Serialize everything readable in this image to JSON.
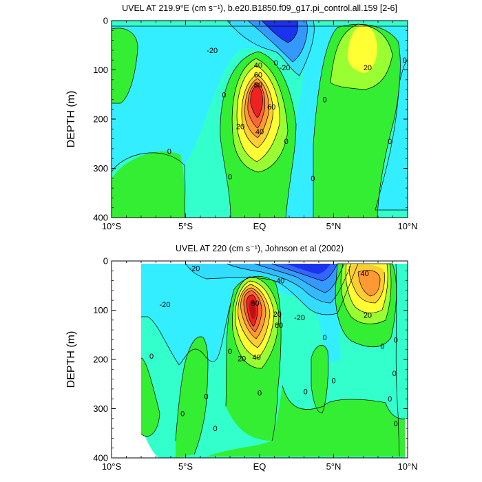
{
  "chart_data": [
    {
      "type": "heatmap",
      "title": "UVEL AT 219.9°E (cm s⁻¹), b.e20.B1850.f09_g17.pi_control.all.159 [2-6]",
      "ylabel": "DEPTH (m)",
      "xlabel": "",
      "xlim": [
        -10,
        10
      ],
      "ylim": [
        400,
        0
      ],
      "x_ticks": [
        {
          "value": -10,
          "label": "10°S"
        },
        {
          "value": -5,
          "label": "5°S"
        },
        {
          "value": 0,
          "label": "EQ"
        },
        {
          "value": 5,
          "label": "5°N"
        },
        {
          "value": 10,
          "label": "10°N"
        }
      ],
      "y_ticks": [
        {
          "value": 0,
          "label": "0"
        },
        {
          "value": 100,
          "label": "100"
        },
        {
          "value": 200,
          "label": "200"
        },
        {
          "value": 300,
          "label": "300"
        },
        {
          "value": 400,
          "label": "400"
        }
      ],
      "contour_interval": 10,
      "features": [
        {
          "name": "eastward undercurrent",
          "lat": 0,
          "depth": 140,
          "value": 90,
          "lat_halfwidth": 1.5,
          "depth_halfwidth": 75
        },
        {
          "name": "westward surface current",
          "lat": 1.8,
          "depth": 15,
          "value": -45,
          "lat_halfwidth": 1.3,
          "depth_halfwidth": 40
        },
        {
          "name": "north eastward countercurrent",
          "lat": 6.8,
          "depth": 40,
          "value": 40,
          "lat_halfwidth": 1.6,
          "depth_halfwidth": 70
        }
      ],
      "contour_labels": [
        {
          "text": "-20",
          "lat": -3.2,
          "depth": 60
        },
        {
          "text": "-20",
          "lat": 1.7,
          "depth": 95
        },
        {
          "text": "0",
          "lat": 1.1,
          "depth": 85
        },
        {
          "text": "40",
          "lat": -0.1,
          "depth": 90
        },
        {
          "text": "60",
          "lat": -0.1,
          "depth": 110
        },
        {
          "text": "80",
          "lat": -0.1,
          "depth": 130
        },
        {
          "text": "60",
          "lat": 0.8,
          "depth": 175
        },
        {
          "text": "40",
          "lat": 0,
          "depth": 225
        },
        {
          "text": "20",
          "lat": -1.3,
          "depth": 215
        },
        {
          "text": "0",
          "lat": -2.4,
          "depth": 150
        },
        {
          "text": "0",
          "lat": -6.1,
          "depth": 265
        },
        {
          "text": "0",
          "lat": 1.8,
          "depth": 245
        },
        {
          "text": "0",
          "lat": -2,
          "depth": 317
        },
        {
          "text": "0",
          "lat": 4.4,
          "depth": 160
        },
        {
          "text": "0",
          "lat": 3.6,
          "depth": 320
        },
        {
          "text": "0",
          "lat": 8.8,
          "depth": 245
        },
        {
          "text": "0",
          "lat": 9.8,
          "depth": 80
        },
        {
          "text": "20",
          "lat": 7.3,
          "depth": 95
        }
      ]
    },
    {
      "type": "heatmap",
      "title": "UVEL AT 220 (cm s⁻¹), Johnson et al (2002)",
      "ylabel": "DEPTH (m)",
      "xlabel": "",
      "xlim": [
        -10,
        10
      ],
      "ylim": [
        400,
        0
      ],
      "data_lat_range": [
        -7.9,
        9.6
      ],
      "x_ticks": [
        {
          "value": -10,
          "label": "10°S"
        },
        {
          "value": -5,
          "label": "5°S"
        },
        {
          "value": 0,
          "label": "EQ"
        },
        {
          "value": 5,
          "label": "5°N"
        },
        {
          "value": 10,
          "label": "10°N"
        }
      ],
      "y_ticks": [
        {
          "value": 0,
          "label": "0"
        },
        {
          "value": 100,
          "label": "100"
        },
        {
          "value": 200,
          "label": "200"
        },
        {
          "value": 300,
          "label": "300"
        },
        {
          "value": 400,
          "label": "400"
        }
      ],
      "contour_interval": 10,
      "features": [
        {
          "name": "eastward undercurrent",
          "lat": -0.2,
          "depth": 110,
          "value": 110,
          "lat_halfwidth": 1.4,
          "depth_halfwidth": 70
        },
        {
          "name": "westward surface current",
          "lat": 2.5,
          "depth": 10,
          "value": -65,
          "lat_halfwidth": 1.6,
          "depth_halfwidth": 45
        },
        {
          "name": "north eastward countercurrent",
          "lat": 6.8,
          "depth": 40,
          "value": 50,
          "lat_halfwidth": 1.5,
          "depth_halfwidth": 65
        }
      ],
      "contour_labels": [
        {
          "text": "-20",
          "lat": -4.4,
          "depth": 15
        },
        {
          "text": "-20",
          "lat": -6.4,
          "depth": 88
        },
        {
          "text": "40",
          "lat": 1.4,
          "depth": 40
        },
        {
          "text": "80",
          "lat": -0.3,
          "depth": 85
        },
        {
          "text": "60",
          "lat": 1.3,
          "depth": 130
        },
        {
          "text": "20",
          "lat": 1.2,
          "depth": 108
        },
        {
          "text": "-20",
          "lat": 2.7,
          "depth": 115
        },
        {
          "text": "40",
          "lat": -0.2,
          "depth": 195
        },
        {
          "text": "20",
          "lat": -1.2,
          "depth": 198
        },
        {
          "text": "0",
          "lat": -2,
          "depth": 183
        },
        {
          "text": "0",
          "lat": 4.4,
          "depth": 155
        },
        {
          "text": "20",
          "lat": 7.3,
          "depth": 110
        },
        {
          "text": "40",
          "lat": 7.1,
          "depth": 25
        },
        {
          "text": "0",
          "lat": 9.2,
          "depth": 160
        },
        {
          "text": "0",
          "lat": 8.3,
          "depth": 173
        },
        {
          "text": "0",
          "lat": -7.3,
          "depth": 193
        },
        {
          "text": "0",
          "lat": 0,
          "depth": 268
        },
        {
          "text": "0",
          "lat": 3.1,
          "depth": 265
        },
        {
          "text": "0",
          "lat": 5,
          "depth": 243
        },
        {
          "text": "0",
          "lat": -3.6,
          "depth": 275
        },
        {
          "text": "0",
          "lat": -5.2,
          "depth": 310
        },
        {
          "text": "0",
          "lat": -3,
          "depth": 340
        },
        {
          "text": "0",
          "lat": 8.8,
          "depth": 280
        },
        {
          "text": "0",
          "lat": 9.2,
          "depth": 330
        },
        {
          "text": "0",
          "lat": 9.1,
          "depth": 228
        }
      ]
    }
  ]
}
